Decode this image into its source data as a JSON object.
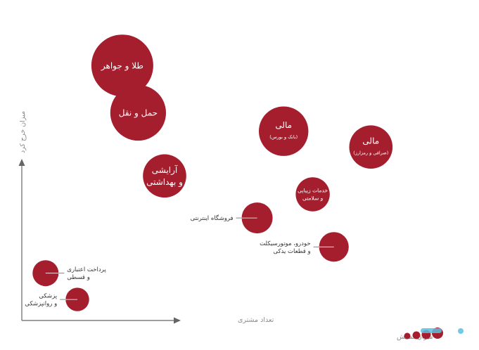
{
  "chart_data": {
    "type": "scatter",
    "encoding": "bubble",
    "xlabel": "تعداد مشتری",
    "ylabel": "میزان خرج کرد",
    "size_legend": "میزان نمایش",
    "grid": false,
    "points": [
      {
        "lines": [
          "طلا و جواهر"
        ],
        "x": 3.8,
        "y": 9.7,
        "size": 10,
        "label_position": "inside"
      },
      {
        "lines": [
          "حمل و نقل"
        ],
        "x": 4.4,
        "y": 7.9,
        "size": 9,
        "label_position": "inside"
      },
      {
        "lines": [
          "آرایشی",
          "و بهداشتی"
        ],
        "x": 5.4,
        "y": 5.5,
        "size": 7,
        "label_position": "inside"
      },
      {
        "lines": [
          "مالی",
          "(بانک و بورس)"
        ],
        "x": 9.9,
        "y": 7.2,
        "size": 8,
        "label_position": "inside"
      },
      {
        "lines": [
          "مالی",
          "(صرافی و رمزارز)"
        ],
        "x": 13.2,
        "y": 6.6,
        "size": 7,
        "label_position": "inside"
      },
      {
        "lines": [
          "خدمات زیبایی",
          "و سلامتی"
        ],
        "x": 11.0,
        "y": 4.8,
        "size": 5.5,
        "label_position": "inside"
      },
      {
        "lines": [
          "فروشگاه اینترنتی"
        ],
        "x": 8.9,
        "y": 3.9,
        "size": 5,
        "label_position": "left"
      },
      {
        "lines": [
          "خودرو، موتورسیکلت",
          "و قطعات یدکی"
        ],
        "x": 11.8,
        "y": 2.8,
        "size": 4.8,
        "label_position": "left"
      },
      {
        "lines": [
          "پرداخت اعتباری",
          "و قسطی"
        ],
        "x": 0.9,
        "y": 1.8,
        "size": 4.2,
        "label_position": "right"
      },
      {
        "lines": [
          "پزشکی",
          "و روانپزشکی"
        ],
        "x": 2.1,
        "y": 0.8,
        "size": 3.8,
        "label_position": "left"
      }
    ]
  },
  "legend": {
    "size_dots_color": "#a51e2e",
    "logo_color": "#5bc0de"
  }
}
